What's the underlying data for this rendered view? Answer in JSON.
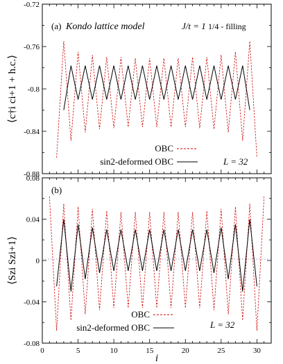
{
  "chart_data": [
    {
      "panel": "(a)",
      "type": "line",
      "title_model": "Kondo lattice model",
      "title_coupling": "J/t = 1",
      "title_filling": "1/4 - filling",
      "ylabel": "⟨c†i ci+1 + h.c.⟩",
      "ylim": [
        -0.88,
        -0.72
      ],
      "yticks": [
        "-0.72",
        "-0.76",
        "-0.8",
        "-0.84",
        "-0.88"
      ],
      "xlim": [
        0,
        32
      ],
      "size_label": "L = 32",
      "legend": [
        "OBC",
        "sin2-deformed OBC"
      ],
      "legend_position": "lower-center",
      "series": [
        {
          "name": "OBC",
          "color": "#cc0000",
          "style": "dashed",
          "x": [
            2,
            3,
            4,
            5,
            6,
            7,
            8,
            9,
            10,
            11,
            12,
            13,
            14,
            15,
            16,
            17,
            18,
            19,
            20,
            21,
            22,
            23,
            24,
            25,
            26,
            27,
            28,
            29,
            30
          ],
          "y": [
            -0.865,
            -0.755,
            -0.849,
            -0.765,
            -0.841,
            -0.768,
            -0.838,
            -0.77,
            -0.837,
            -0.77,
            -0.836,
            -0.771,
            -0.836,
            -0.771,
            -0.836,
            -0.771,
            -0.836,
            -0.771,
            -0.836,
            -0.77,
            -0.837,
            -0.77,
            -0.838,
            -0.768,
            -0.841,
            -0.765,
            -0.849,
            -0.755,
            -0.865
          ]
        },
        {
          "name": "sin2-deformed OBC",
          "color": "#000000",
          "style": "solid",
          "x": [
            3,
            4,
            5,
            6,
            7,
            8,
            9,
            10,
            11,
            12,
            13,
            14,
            15,
            16,
            17,
            18,
            19,
            20,
            21,
            22,
            23,
            24,
            25,
            26,
            27,
            28,
            29
          ],
          "y": [
            -0.82,
            -0.778,
            -0.81,
            -0.778,
            -0.81,
            -0.778,
            -0.81,
            -0.778,
            -0.81,
            -0.778,
            -0.81,
            -0.778,
            -0.81,
            -0.778,
            -0.81,
            -0.778,
            -0.81,
            -0.778,
            -0.81,
            -0.778,
            -0.81,
            -0.778,
            -0.81,
            -0.778,
            -0.81,
            -0.778,
            -0.82
          ]
        }
      ]
    },
    {
      "panel": "(b)",
      "type": "line",
      "ylabel": "⟨Szi Szi+1⟩",
      "ylim": [
        -0.08,
        0.08
      ],
      "yticks": [
        "0.08",
        "0.04",
        "0",
        "-0.04",
        "-0.08"
      ],
      "xlabel": "i",
      "xlim": [
        0,
        32
      ],
      "xticks": [
        "0",
        "5",
        "10",
        "15",
        "20",
        "25",
        "30"
      ],
      "size_label": "L = 32",
      "legend": [
        "OBC",
        "sin2-deformed OBC"
      ],
      "legend_position": "lower-center",
      "reference_line_y": 0,
      "series": [
        {
          "name": "OBC",
          "color": "#cc0000",
          "style": "dashed",
          "x": [
            1,
            2,
            3,
            4,
            5,
            6,
            7,
            8,
            9,
            10,
            11,
            12,
            13,
            14,
            15,
            16,
            17,
            18,
            19,
            20,
            21,
            22,
            23,
            24,
            25,
            26,
            27,
            28,
            29,
            30,
            31
          ],
          "y": [
            0.062,
            -0.068,
            0.055,
            -0.058,
            0.052,
            -0.052,
            0.05,
            -0.048,
            0.048,
            -0.046,
            0.047,
            -0.046,
            0.047,
            -0.046,
            0.047,
            -0.046,
            0.047,
            -0.046,
            0.047,
            -0.046,
            0.047,
            -0.046,
            0.048,
            -0.048,
            0.05,
            -0.052,
            0.052,
            -0.058,
            0.055,
            -0.068,
            0.062
          ]
        },
        {
          "name": "sin2-deformed OBC",
          "color": "#000000",
          "style": "solid",
          "x": [
            2,
            3,
            4,
            5,
            6,
            7,
            8,
            9,
            10,
            11,
            12,
            13,
            14,
            15,
            16,
            17,
            18,
            19,
            20,
            21,
            22,
            23,
            24,
            25,
            26,
            27,
            28,
            29,
            30
          ],
          "y": [
            -0.025,
            0.04,
            -0.03,
            0.035,
            -0.018,
            0.032,
            -0.012,
            0.03,
            -0.01,
            0.03,
            -0.01,
            0.03,
            -0.01,
            0.03,
            -0.01,
            0.03,
            -0.01,
            0.03,
            -0.01,
            0.03,
            -0.01,
            0.03,
            -0.012,
            0.032,
            -0.018,
            0.035,
            -0.03,
            0.04,
            -0.025
          ]
        }
      ]
    }
  ]
}
